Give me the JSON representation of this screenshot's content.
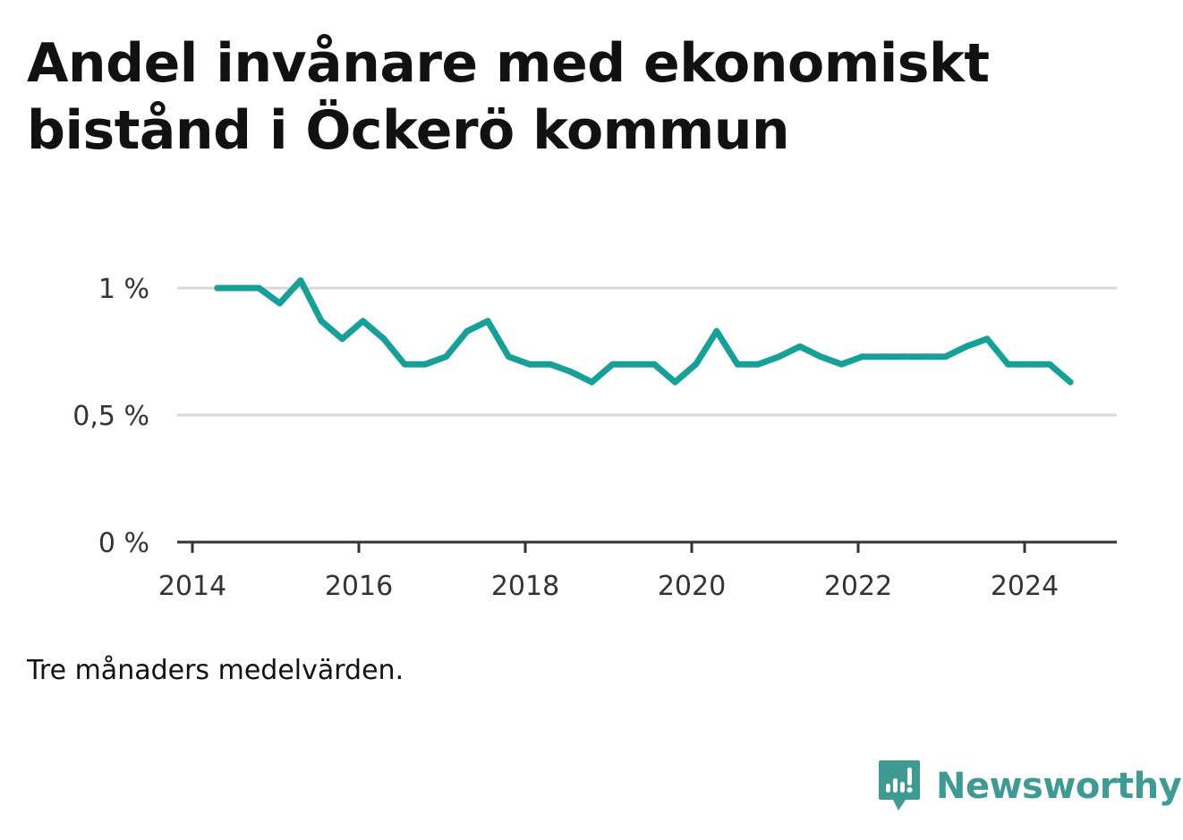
{
  "title": "Andel invånare med ekonomiskt bistånd i Öckerö kommun",
  "note": "Tre månaders medelvärden.",
  "brand": {
    "name": "Newsworthy",
    "icon": "newsworthy-logo-icon",
    "color": "#3f9a94"
  },
  "colors": {
    "line": "#16a097",
    "grid": "#d9d9d9",
    "axis": "#333333"
  },
  "chart_data": {
    "type": "line",
    "title": "Andel invånare med ekonomiskt bistånd i Öckerö kommun",
    "xlabel": "",
    "ylabel": "",
    "ylim": [
      0,
      1.0
    ],
    "xlim": [
      2014,
      2025.1
    ],
    "grid": true,
    "y_ticks": [
      {
        "value": 0,
        "label": "0 %"
      },
      {
        "value": 0.5,
        "label": "0,5 %"
      },
      {
        "value": 1.0,
        "label": "1 %"
      }
    ],
    "x_ticks": [
      {
        "value": 2014,
        "label": "2014"
      },
      {
        "value": 2016,
        "label": "2016"
      },
      {
        "value": 2018,
        "label": "2018"
      },
      {
        "value": 2020,
        "label": "2020"
      },
      {
        "value": 2022,
        "label": "2022"
      },
      {
        "value": 2024,
        "label": "2024"
      }
    ],
    "series": [
      {
        "x": [
          2014.3,
          2014.55,
          2014.8,
          2015.05,
          2015.3,
          2015.55,
          2015.8,
          2016.05,
          2016.3,
          2016.55,
          2016.8,
          2017.05,
          2017.3,
          2017.55,
          2017.8,
          2018.05,
          2018.3,
          2018.55,
          2018.8,
          2019.05,
          2019.3,
          2019.55,
          2019.8,
          2020.05,
          2020.3,
          2020.55,
          2020.8,
          2021.05,
          2021.3,
          2021.55,
          2021.8,
          2022.05,
          2022.3,
          2022.55,
          2022.8,
          2023.05,
          2023.3,
          2023.55,
          2023.8,
          2024.05,
          2024.3,
          2024.55
        ],
        "values": [
          1.0,
          1.0,
          1.0,
          0.94,
          1.03,
          0.87,
          0.8,
          0.87,
          0.8,
          0.7,
          0.7,
          0.73,
          0.83,
          0.87,
          0.73,
          0.7,
          0.7,
          0.67,
          0.63,
          0.7,
          0.7,
          0.7,
          0.63,
          0.7,
          0.83,
          0.7,
          0.7,
          0.73,
          0.77,
          0.73,
          0.7,
          0.73,
          0.73,
          0.73,
          0.73,
          0.73,
          0.77,
          0.8,
          0.7,
          0.7,
          0.7,
          0.63
        ]
      }
    ]
  }
}
